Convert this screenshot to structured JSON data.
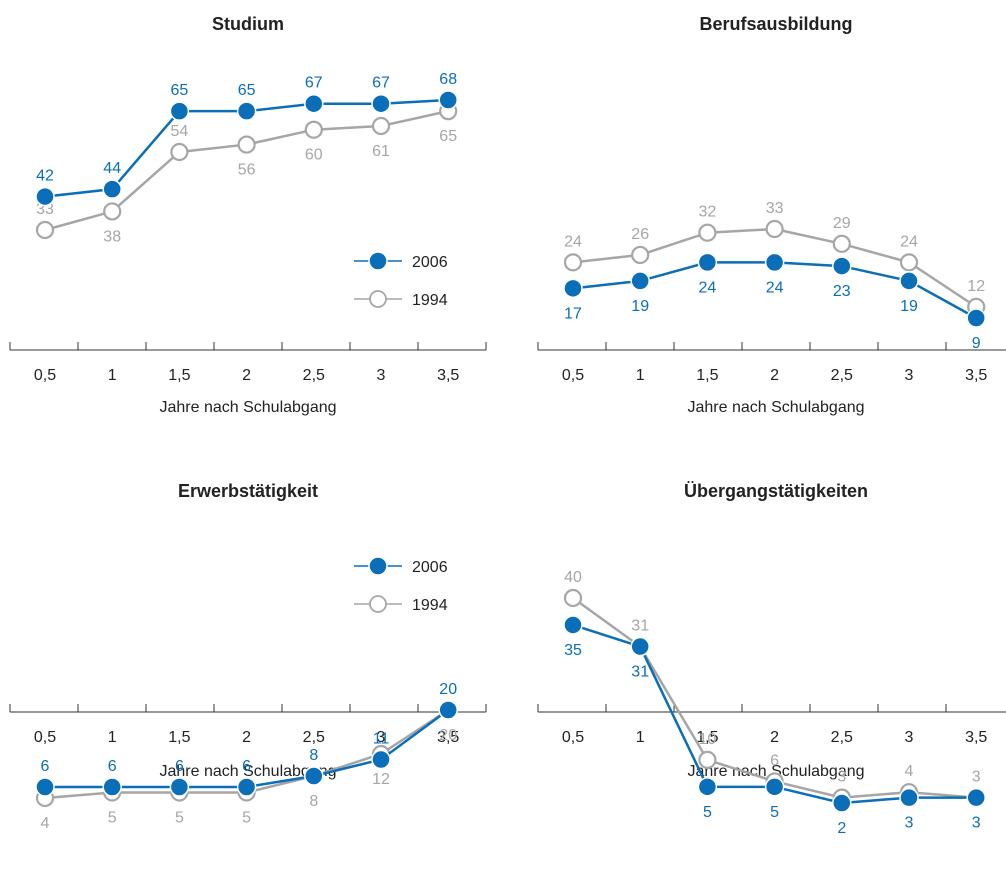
{
  "colors": {
    "series_2006": "#0a6eb8",
    "series_1994": "#a6a6a6",
    "axis": "#333333",
    "text": "#222222"
  },
  "chart_data": [
    {
      "type": "line",
      "title": "Studium",
      "xlabel": "Jahre nach Schulabgang",
      "x": [
        "0,5",
        "1",
        "1,5",
        "2",
        "2,5",
        "3",
        "3,5"
      ],
      "series": [
        {
          "name": "2006",
          "values": [
            42,
            44,
            65,
            65,
            67,
            67,
            68
          ]
        },
        {
          "name": "1994",
          "values": [
            33,
            38,
            54,
            56,
            60,
            61,
            65
          ]
        }
      ],
      "legend": "right"
    },
    {
      "type": "line",
      "title": "Berufsausbildung",
      "xlabel": "Jahre nach Schulabgang",
      "x": [
        "0,5",
        "1",
        "1,5",
        "2",
        "2,5",
        "3",
        "3,5"
      ],
      "series": [
        {
          "name": "2006",
          "values": [
            17,
            19,
            24,
            24,
            23,
            19,
            9
          ]
        },
        {
          "name": "1994",
          "values": [
            24,
            26,
            32,
            33,
            29,
            24,
            12
          ]
        }
      ]
    },
    {
      "type": "line",
      "title": "Erwerbstätigkeit",
      "xlabel": "Jahre nach Schulabgang",
      "x": [
        "0,5",
        "1",
        "1,5",
        "2",
        "2,5",
        "3",
        "3,5"
      ],
      "series": [
        {
          "name": "2006",
          "values": [
            6,
            6,
            6,
            6,
            8,
            11,
            20
          ]
        },
        {
          "name": "1994",
          "values": [
            4,
            5,
            5,
            5,
            8,
            12,
            20
          ]
        }
      ],
      "legend": "top-right"
    },
    {
      "type": "line",
      "title": "Übergangstätigkeiten",
      "xlabel": "Jahre nach Schulabgang",
      "x": [
        "0,5",
        "1",
        "1,5",
        "2",
        "2,5",
        "3",
        "3,5"
      ],
      "series": [
        {
          "name": "2006",
          "values": [
            35,
            31,
            5,
            5,
            2,
            3,
            3
          ]
        },
        {
          "name": "1994",
          "values": [
            40,
            31,
            10,
            6,
            3,
            4,
            3
          ]
        }
      ]
    }
  ]
}
